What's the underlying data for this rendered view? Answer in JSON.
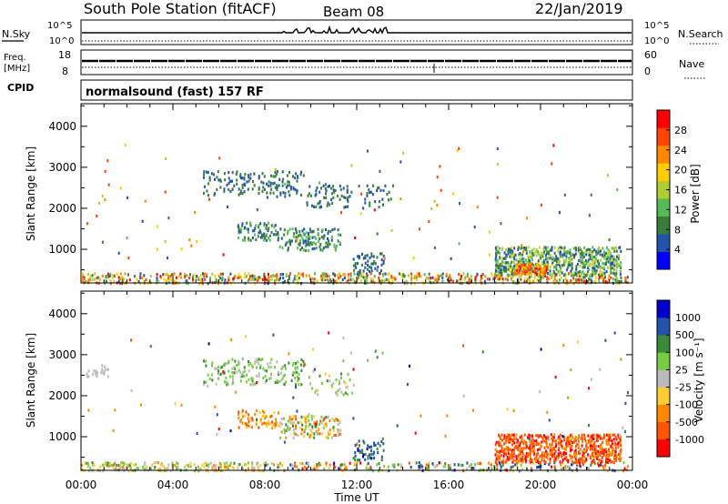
{
  "header": {
    "title": "South Pole Station (fitACF)",
    "beam": "Beam 08",
    "date": "22/Jan/2019"
  },
  "summary": {
    "nsky_label": "N.Sky",
    "nsky_ticks": [
      "10^5",
      "10^0"
    ],
    "nsearch_label": "N.Search",
    "nsearch_ticks": [
      "10^5",
      "10^0"
    ],
    "freq_label": "Freq.",
    "freq_unit": "[MHz]",
    "freq_ticks": [
      "18",
      "8"
    ],
    "nave_label": "Nave",
    "nave_ticks": [
      "60",
      "0"
    ],
    "cpid_label": "CPID",
    "cpid_text": "normalsound (fast) 157 RF"
  },
  "x_axis": {
    "label": "Time UT",
    "ticks": [
      "00:00",
      "04:00",
      "08:00",
      "12:00",
      "16:00",
      "20:00",
      "00:00"
    ],
    "hours": [
      0,
      4,
      8,
      12,
      16,
      20,
      24
    ],
    "range_hours": [
      0,
      24
    ]
  },
  "colors": {
    "power": [
      "#0000ff",
      "#2255aa",
      "#3a7c3a",
      "#55bb55",
      "#b0cc33",
      "#ffcc00",
      "#ff8800",
      "#ff4400",
      "#ff0000"
    ],
    "velocity": [
      "#ff0000",
      "#ff5500",
      "#ff8800",
      "#ffcc33",
      "#bbbbbb",
      "#77cc44",
      "#3a8a3a",
      "#2255aa",
      "#0000cc"
    ]
  },
  "chart_data": [
    {
      "type": "heatmap",
      "panel": "power",
      "ylabel": "Slant Range [km]",
      "yticks": [
        1000,
        2000,
        3000,
        4000
      ],
      "ylim": [
        180,
        4550
      ],
      "xlim": [
        0,
        24
      ],
      "colorbar": {
        "label": "Power [dB]",
        "ticks": [
          4,
          8,
          12,
          16,
          20,
          24,
          28
        ],
        "range": [
          0,
          32
        ]
      },
      "regions": [
        {
          "t": [
            0.0,
            23.8
          ],
          "r": [
            200,
            460
          ],
          "v": [
            4,
            30
          ],
          "d": 0.35
        },
        {
          "t": [
            5.3,
            9.7
          ],
          "r": [
            2300,
            2950
          ],
          "v": [
            4,
            10
          ],
          "d": 0.2
        },
        {
          "t": [
            9.8,
            11.8
          ],
          "r": [
            2050,
            2600
          ],
          "v": [
            4,
            10
          ],
          "d": 0.15
        },
        {
          "t": [
            12.3,
            13.6
          ],
          "r": [
            2050,
            2650
          ],
          "v": [
            4,
            9
          ],
          "d": 0.12
        },
        {
          "t": [
            6.8,
            8.6
          ],
          "r": [
            1250,
            1700
          ],
          "v": [
            5,
            14
          ],
          "d": 0.3
        },
        {
          "t": [
            8.6,
            11.3
          ],
          "r": [
            1000,
            1550
          ],
          "v": [
            5,
            13
          ],
          "d": 0.3
        },
        {
          "t": [
            11.8,
            13.2
          ],
          "r": [
            450,
            950
          ],
          "v": [
            4,
            10
          ],
          "d": 0.25
        },
        {
          "t": [
            18.0,
            23.5
          ],
          "r": [
            400,
            1100
          ],
          "v": [
            4,
            18
          ],
          "d": 0.5
        },
        {
          "t": [
            18.8,
            20.3
          ],
          "r": [
            420,
            700
          ],
          "v": [
            18,
            30
          ],
          "d": 0.65
        },
        {
          "t": [
            0.2,
            23.8
          ],
          "r": [
            800,
            3600
          ],
          "v": [
            4,
            30
          ],
          "d": 0.006
        }
      ]
    },
    {
      "type": "heatmap",
      "panel": "velocity",
      "ylabel": "Slant Range [km]",
      "yticks": [
        1000,
        2000,
        3000,
        4000
      ],
      "ylim": [
        180,
        4550
      ],
      "xlim": [
        0,
        24
      ],
      "colorbar": {
        "label": "Velocity [m s⁻¹]",
        "ticks": [
          -1000,
          -500,
          -100,
          -25,
          25,
          100,
          500,
          1000
        ],
        "tick_labels": [
          "-1000",
          "-500",
          "-100",
          "-25",
          "25",
          "100",
          "500",
          "1000"
        ]
      },
      "regions": [
        {
          "t": [
            0.0,
            8.0
          ],
          "r": [
            200,
            420
          ],
          "v": [
            2,
            6
          ],
          "d": 0.35
        },
        {
          "t": [
            8.0,
            23.8
          ],
          "r": [
            200,
            420
          ],
          "v": [
            0,
            8
          ],
          "d": 0.25
        },
        {
          "t": [
            0.2,
            1.2
          ],
          "r": [
            2500,
            2800
          ],
          "v": [
            4,
            4
          ],
          "d": 0.25
        },
        {
          "t": [
            5.3,
            9.7
          ],
          "r": [
            2300,
            2950
          ],
          "v": [
            4,
            6
          ],
          "d": 0.2
        },
        {
          "t": [
            9.8,
            11.8
          ],
          "r": [
            2050,
            2600
          ],
          "v": [
            3,
            6
          ],
          "d": 0.15
        },
        {
          "t": [
            6.8,
            8.6
          ],
          "r": [
            1250,
            1700
          ],
          "v": [
            1,
            3
          ],
          "d": 0.3
        },
        {
          "t": [
            8.6,
            11.3
          ],
          "r": [
            1000,
            1550
          ],
          "v": [
            1,
            6
          ],
          "d": 0.3
        },
        {
          "t": [
            11.8,
            13.2
          ],
          "r": [
            450,
            950
          ],
          "v": [
            6,
            8
          ],
          "d": 0.25
        },
        {
          "t": [
            18.0,
            23.5
          ],
          "r": [
            400,
            1100
          ],
          "v": [
            0,
            2
          ],
          "d": 0.55
        },
        {
          "t": [
            0.2,
            23.8
          ],
          "r": [
            800,
            3600
          ],
          "v": [
            0,
            8
          ],
          "d": 0.006
        }
      ]
    }
  ]
}
